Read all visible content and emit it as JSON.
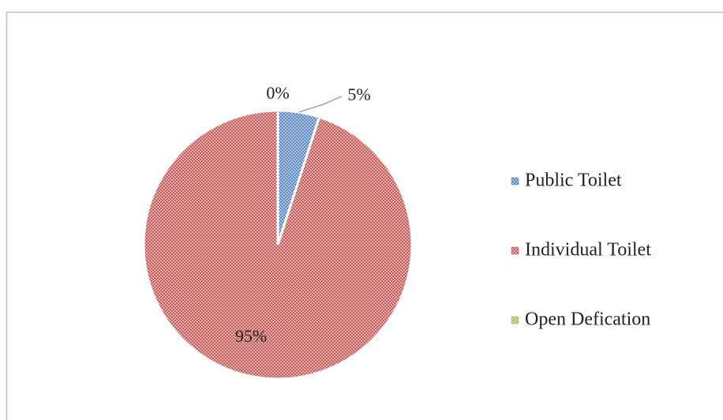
{
  "chart_data": {
    "type": "pie",
    "categories": [
      "Public Toilet",
      "Individual Toilet",
      "Open Defication"
    ],
    "values": [
      5,
      95,
      0
    ],
    "value_labels": [
      "5%",
      "95%",
      "0%"
    ],
    "colors": [
      "#4f81bd",
      "#c0504d",
      "#9bbb59"
    ],
    "legend": "right"
  }
}
